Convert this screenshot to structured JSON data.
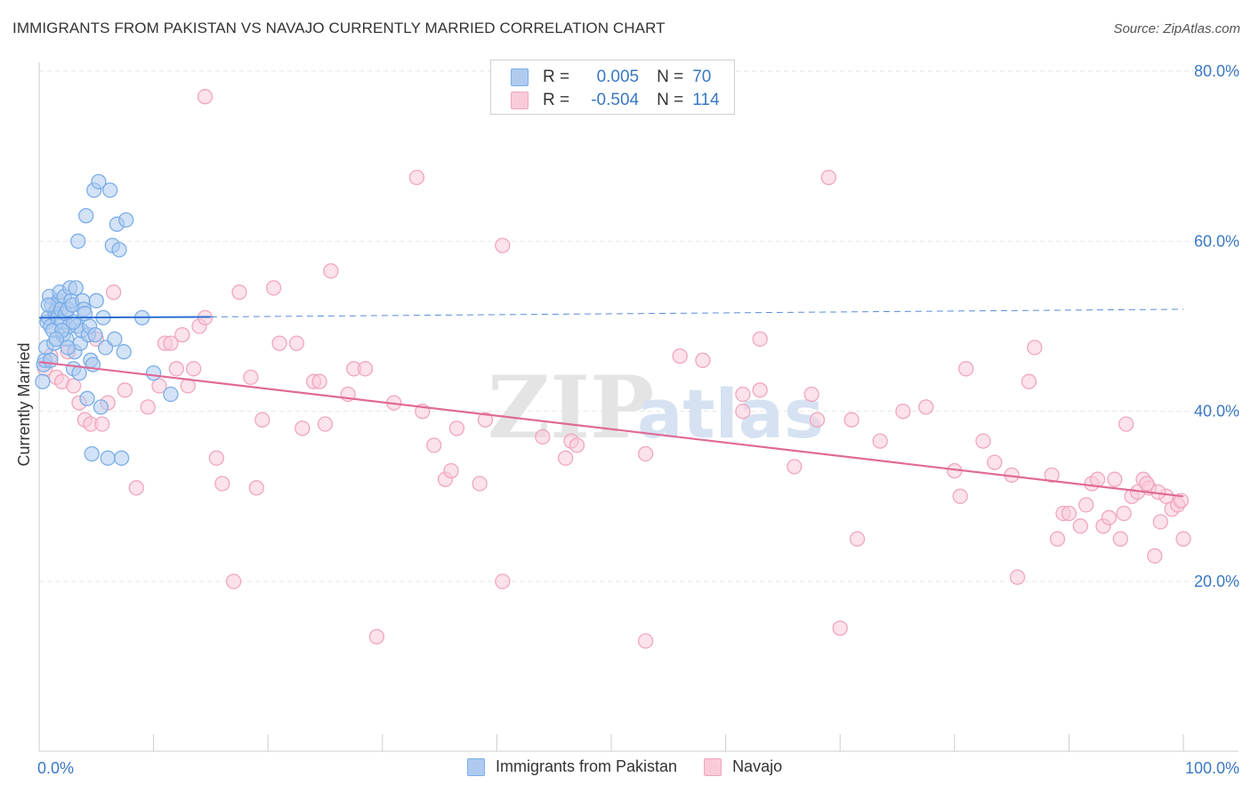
{
  "title": "IMMIGRANTS FROM PAKISTAN VS NAVAJO CURRENTLY MARRIED CORRELATION CHART",
  "source": "Source: ZipAtlas.com",
  "watermark": {
    "zip": "ZIP",
    "atlas": "atlas"
  },
  "legend_top": {
    "rows": [
      {
        "r_label": "R =",
        "r_value": "0.005",
        "n_label": "N =",
        "n_value": "70"
      },
      {
        "r_label": "R =",
        "r_value": "-0.504",
        "n_label": "N =",
        "n_value": "114"
      }
    ]
  },
  "chart_data": {
    "type": "scatter",
    "title": "IMMIGRANTS FROM PAKISTAN VS NAVAJO CURRENTLY MARRIED CORRELATION CHART",
    "xlabel": "",
    "ylabel": "Currently Married",
    "xlim": [
      0,
      100
    ],
    "ylim": [
      0,
      85
    ],
    "x_tick_labels": [
      "0.0%",
      "100.0%"
    ],
    "y_ticks": [
      20,
      40,
      60,
      80
    ],
    "y_tick_labels": [
      "20.0%",
      "40.0%",
      "60.0%",
      "80.0%"
    ],
    "grid": true,
    "legend_position": "bottom",
    "series": [
      {
        "name": "Immigrants from Pakistan",
        "color": "#7aaee8",
        "fill": "#aecbef",
        "trend": {
          "x": [
            0,
            15
          ],
          "y": [
            51.0,
            51.1
          ],
          "dashed_to": [
            100,
            52.0
          ],
          "color": "#2a6fd0"
        },
        "points": [
          [
            0.3,
            43.5
          ],
          [
            0.4,
            45.5
          ],
          [
            0.5,
            46.0
          ],
          [
            0.6,
            47.5
          ],
          [
            0.7,
            50.5
          ],
          [
            0.8,
            51.0
          ],
          [
            0.9,
            53.5
          ],
          [
            1.0,
            50.0
          ],
          [
            1.1,
            52.5
          ],
          [
            1.2,
            49.5
          ],
          [
            1.3,
            48.0
          ],
          [
            1.4,
            51.5
          ],
          [
            1.5,
            52.0
          ],
          [
            1.6,
            51.0
          ],
          [
            1.7,
            53.0
          ],
          [
            1.8,
            54.0
          ],
          [
            1.9,
            52.0
          ],
          [
            2.0,
            50.5
          ],
          [
            2.1,
            49.0
          ],
          [
            2.2,
            53.5
          ],
          [
            2.3,
            51.5
          ],
          [
            2.4,
            48.5
          ],
          [
            2.5,
            52.0
          ],
          [
            2.6,
            50.0
          ],
          [
            2.7,
            54.5
          ],
          [
            2.8,
            53.0
          ],
          [
            2.9,
            52.5
          ],
          [
            3.0,
            45.0
          ],
          [
            3.1,
            47.0
          ],
          [
            3.2,
            54.5
          ],
          [
            3.3,
            50.0
          ],
          [
            3.4,
            60.0
          ],
          [
            3.5,
            44.5
          ],
          [
            3.6,
            48.0
          ],
          [
            3.7,
            49.5
          ],
          [
            3.8,
            53.0
          ],
          [
            3.9,
            52.0
          ],
          [
            4.0,
            51.5
          ],
          [
            4.1,
            63.0
          ],
          [
            4.2,
            41.5
          ],
          [
            4.3,
            49.0
          ],
          [
            4.4,
            50.0
          ],
          [
            4.5,
            46.0
          ],
          [
            4.6,
            35.0
          ],
          [
            4.7,
            45.5
          ],
          [
            4.8,
            66.0
          ],
          [
            4.9,
            49.0
          ],
          [
            5.0,
            53.0
          ],
          [
            5.2,
            67.0
          ],
          [
            5.4,
            40.5
          ],
          [
            5.6,
            51.0
          ],
          [
            5.8,
            47.5
          ],
          [
            6.0,
            34.5
          ],
          [
            6.2,
            66.0
          ],
          [
            6.4,
            59.5
          ],
          [
            6.6,
            48.5
          ],
          [
            6.8,
            62.0
          ],
          [
            7.0,
            59.0
          ],
          [
            7.2,
            34.5
          ],
          [
            7.4,
            47.0
          ],
          [
            7.6,
            62.5
          ],
          [
            9.0,
            51.0
          ],
          [
            10.0,
            44.5
          ],
          [
            11.5,
            42.0
          ],
          [
            1.0,
            46.0
          ],
          [
            2.0,
            49.5
          ],
          [
            2.5,
            47.5
          ],
          [
            3.0,
            50.5
          ],
          [
            1.5,
            48.5
          ],
          [
            0.8,
            52.5
          ]
        ]
      },
      {
        "name": "Navajo",
        "color": "#f0a6bd",
        "fill": "#f9cbd8",
        "trend": {
          "x": [
            0,
            100
          ],
          "y": [
            45.8,
            30.0
          ],
          "color": "#e06a96"
        },
        "points": [
          [
            0.5,
            45.0
          ],
          [
            1.0,
            46.5
          ],
          [
            1.5,
            44.0
          ],
          [
            2.0,
            43.5
          ],
          [
            2.5,
            47.0
          ],
          [
            3.0,
            43.0
          ],
          [
            3.5,
            41.0
          ],
          [
            4.0,
            39.0
          ],
          [
            4.5,
            38.5
          ],
          [
            5.0,
            48.5
          ],
          [
            5.5,
            38.5
          ],
          [
            6.0,
            41.0
          ],
          [
            6.5,
            54.0
          ],
          [
            7.5,
            42.5
          ],
          [
            8.5,
            31.0
          ],
          [
            9.5,
            40.5
          ],
          [
            10.5,
            43.0
          ],
          [
            11.0,
            48.0
          ],
          [
            11.5,
            48.0
          ],
          [
            12.0,
            45.0
          ],
          [
            12.5,
            49.0
          ],
          [
            13.0,
            43.0
          ],
          [
            13.5,
            45.0
          ],
          [
            14.0,
            50.0
          ],
          [
            14.5,
            51.0
          ],
          [
            14.5,
            77.0
          ],
          [
            15.5,
            34.5
          ],
          [
            16.0,
            31.5
          ],
          [
            17.0,
            20.0
          ],
          [
            17.5,
            54.0
          ],
          [
            18.5,
            44.0
          ],
          [
            19.0,
            31.0
          ],
          [
            19.5,
            39.0
          ],
          [
            20.5,
            54.5
          ],
          [
            21.0,
            48.0
          ],
          [
            22.5,
            48.0
          ],
          [
            23.0,
            38.0
          ],
          [
            24.0,
            43.5
          ],
          [
            24.5,
            43.5
          ],
          [
            25.0,
            38.5
          ],
          [
            25.5,
            56.5
          ],
          [
            27.0,
            42.0
          ],
          [
            27.5,
            45.0
          ],
          [
            28.5,
            45.0
          ],
          [
            29.5,
            13.5
          ],
          [
            31.0,
            41.0
          ],
          [
            33.0,
            67.5
          ],
          [
            33.5,
            40.0
          ],
          [
            34.5,
            36.0
          ],
          [
            35.5,
            32.0
          ],
          [
            36.0,
            33.0
          ],
          [
            36.5,
            38.0
          ],
          [
            38.5,
            31.5
          ],
          [
            39.0,
            39.0
          ],
          [
            40.5,
            20.0
          ],
          [
            40.5,
            59.5
          ],
          [
            44.0,
            37.0
          ],
          [
            46.0,
            34.5
          ],
          [
            46.5,
            36.5
          ],
          [
            47.0,
            36.0
          ],
          [
            53.0,
            13.0
          ],
          [
            53.0,
            35.0
          ],
          [
            56.0,
            46.5
          ],
          [
            58.0,
            46.0
          ],
          [
            61.5,
            42.0
          ],
          [
            61.5,
            40.0
          ],
          [
            63.0,
            42.5
          ],
          [
            63.0,
            48.5
          ],
          [
            66.0,
            33.5
          ],
          [
            67.5,
            42.0
          ],
          [
            68.0,
            39.0
          ],
          [
            69.0,
            67.5
          ],
          [
            70.0,
            14.5
          ],
          [
            71.0,
            39.0
          ],
          [
            71.5,
            25.0
          ],
          [
            73.5,
            36.5
          ],
          [
            75.5,
            40.0
          ],
          [
            77.5,
            40.5
          ],
          [
            80.0,
            33.0
          ],
          [
            80.5,
            30.0
          ],
          [
            81.0,
            45.0
          ],
          [
            82.5,
            36.5
          ],
          [
            83.5,
            34.0
          ],
          [
            85.0,
            32.5
          ],
          [
            85.5,
            20.5
          ],
          [
            86.5,
            43.5
          ],
          [
            87.0,
            47.5
          ],
          [
            88.5,
            32.5
          ],
          [
            89.0,
            25.0
          ],
          [
            89.5,
            28.0
          ],
          [
            90.0,
            28.0
          ],
          [
            91.0,
            26.5
          ],
          [
            91.5,
            29.0
          ],
          [
            92.0,
            31.5
          ],
          [
            92.5,
            32.0
          ],
          [
            93.0,
            26.5
          ],
          [
            93.5,
            27.5
          ],
          [
            94.0,
            32.0
          ],
          [
            94.5,
            25.0
          ],
          [
            95.0,
            38.5
          ],
          [
            95.5,
            30.0
          ],
          [
            96.0,
            30.5
          ],
          [
            96.5,
            32.0
          ],
          [
            97.0,
            31.0
          ],
          [
            97.5,
            23.0
          ],
          [
            98.0,
            27.0
          ],
          [
            98.5,
            30.0
          ],
          [
            99.0,
            28.5
          ],
          [
            99.5,
            29.0
          ],
          [
            100.0,
            25.0
          ],
          [
            99.8,
            29.5
          ],
          [
            97.8,
            30.5
          ],
          [
            96.8,
            31.5
          ],
          [
            94.8,
            28.0
          ]
        ]
      }
    ]
  }
}
